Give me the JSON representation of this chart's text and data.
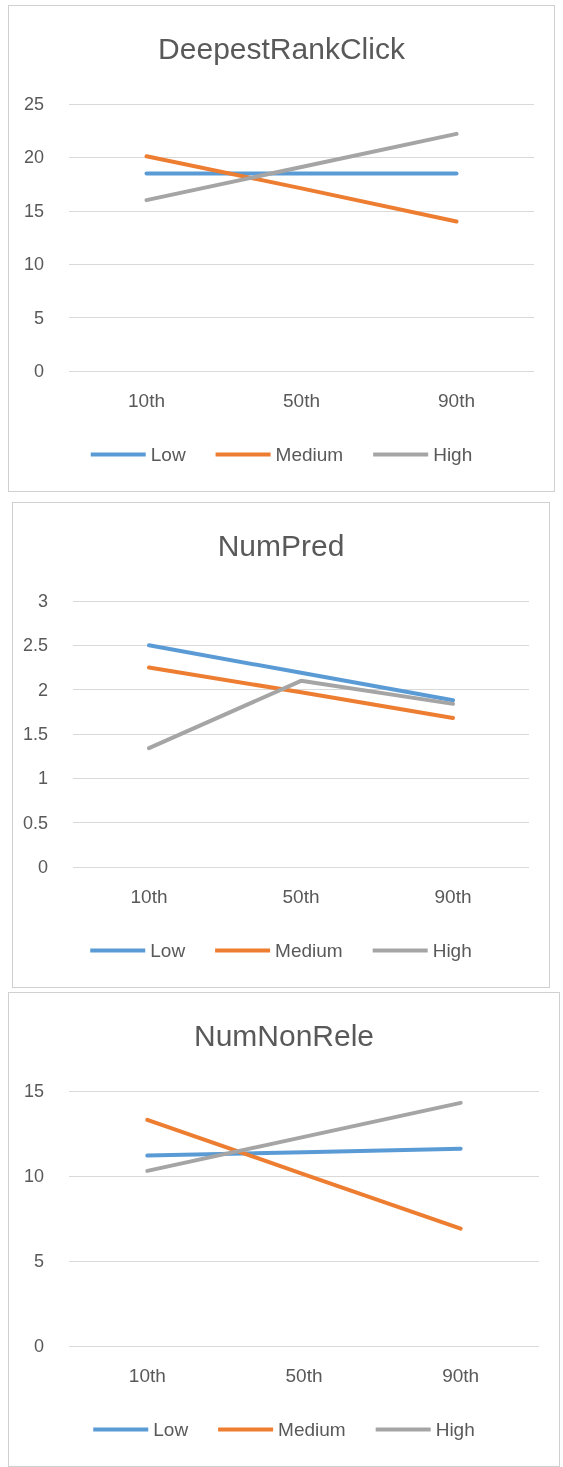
{
  "chart_data": [
    {
      "type": "line",
      "title": "DeepestRankClick",
      "categories": [
        "10th",
        "50th",
        "90th"
      ],
      "ylim": [
        0,
        25
      ],
      "yticks": [
        0,
        5,
        10,
        15,
        20,
        25
      ],
      "grid": "y",
      "legend": "bottom",
      "marker": "none",
      "series": [
        {
          "name": "Low",
          "color": "#5b9bd5",
          "values": [
            18.5,
            18.5,
            18.5
          ]
        },
        {
          "name": "Medium",
          "color": "#ed7d31",
          "values": [
            20.1,
            17.1,
            14.0
          ]
        },
        {
          "name": "High",
          "color": "#a5a5a5",
          "values": [
            16.0,
            19.1,
            22.2
          ]
        }
      ]
    },
    {
      "type": "line",
      "title": "NumPred",
      "categories": [
        "10th",
        "50th",
        "90th"
      ],
      "ylim": [
        0,
        3
      ],
      "yticks": [
        0,
        0.5,
        1,
        1.5,
        2,
        2.5,
        3
      ],
      "grid": "y",
      "legend": "bottom",
      "marker": "none",
      "series": [
        {
          "name": "Low",
          "color": "#5b9bd5",
          "values": [
            2.5,
            2.19,
            1.88
          ]
        },
        {
          "name": "Medium",
          "color": "#ed7d31",
          "values": [
            2.25,
            1.97,
            1.68
          ]
        },
        {
          "name": "High",
          "color": "#a5a5a5",
          "values": [
            1.34,
            2.1,
            1.84
          ]
        }
      ]
    },
    {
      "type": "line",
      "title": "NumNonRele",
      "categories": [
        "10th",
        "50th",
        "90th"
      ],
      "ylim": [
        0,
        15
      ],
      "yticks": [
        0,
        5,
        10,
        15
      ],
      "grid": "y",
      "legend": "bottom",
      "marker": "none",
      "series": [
        {
          "name": "Low",
          "color": "#5b9bd5",
          "values": [
            11.2,
            11.4,
            11.6
          ]
        },
        {
          "name": "Medium",
          "color": "#ed7d31",
          "values": [
            13.3,
            10.1,
            6.9
          ]
        },
        {
          "name": "High",
          "color": "#a5a5a5",
          "values": [
            10.3,
            12.3,
            14.3
          ]
        }
      ]
    }
  ]
}
